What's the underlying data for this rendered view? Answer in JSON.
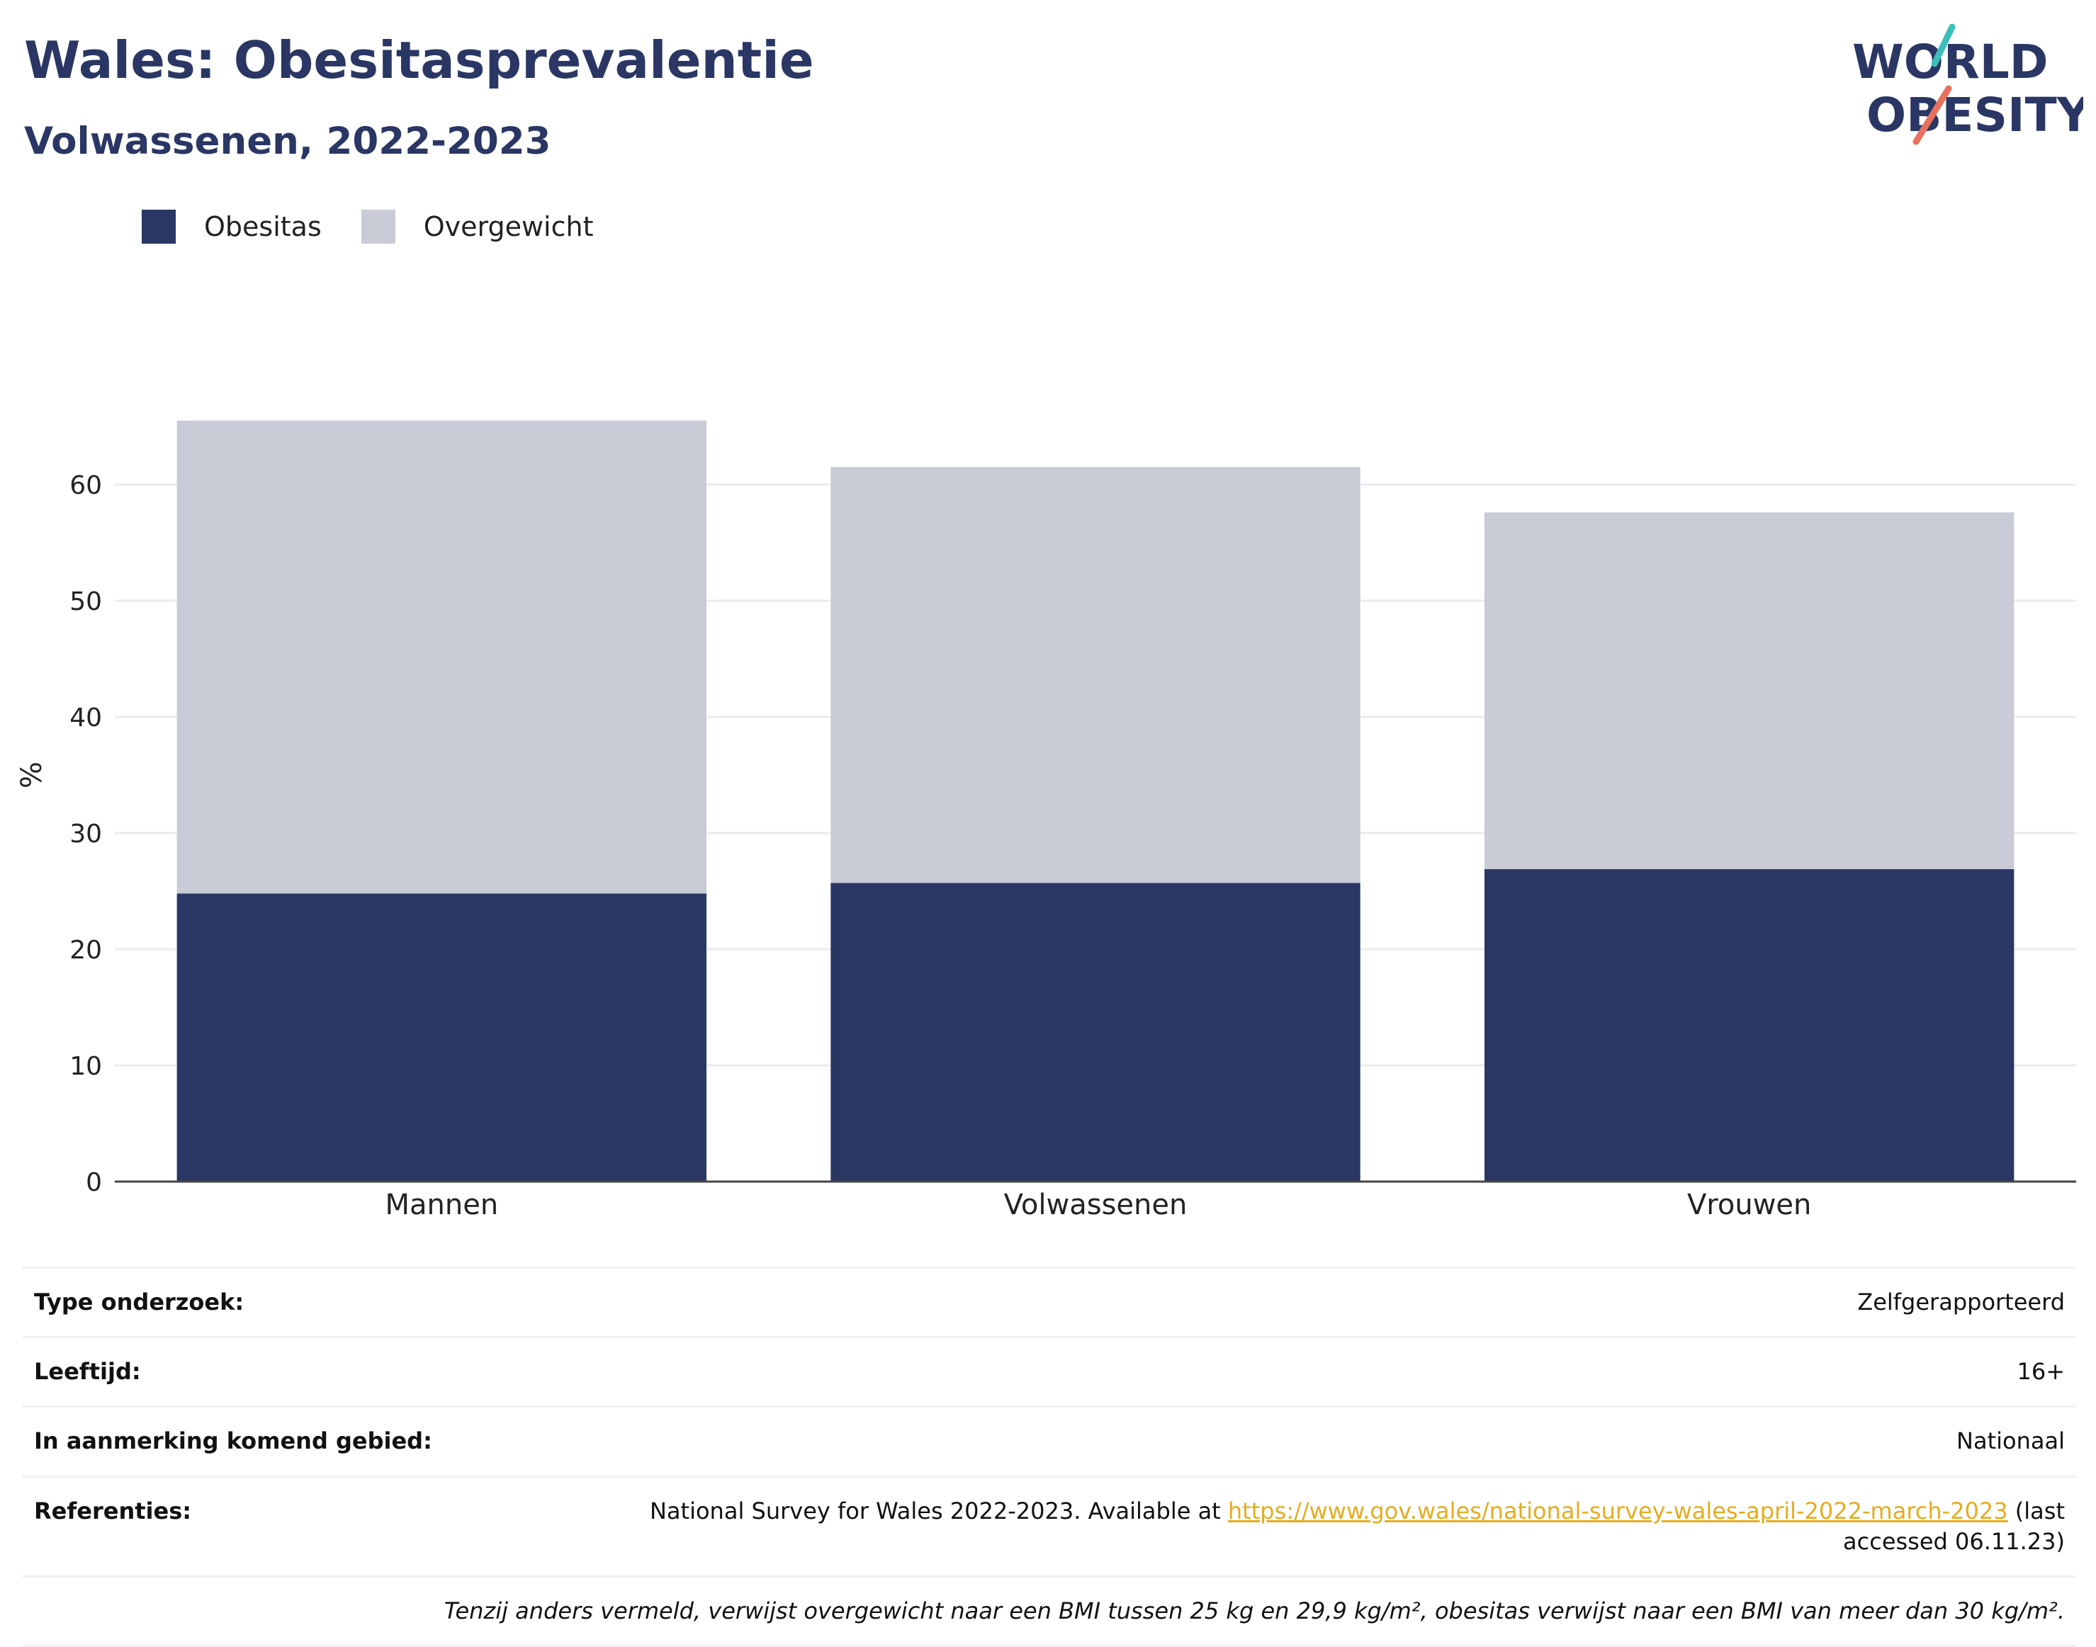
{
  "title": "Wales: Obesitasprevalentie",
  "subtitle": "Volwassenen, 2022-2023",
  "logo": {
    "line1": "WORLD",
    "line2": "OBESITY"
  },
  "colors": {
    "obesity": "#2a3664",
    "overweight": "#c9cbd6",
    "title": "#2a3664",
    "link": "#e6ac1f",
    "logo_teal": "#3bbfb8",
    "logo_coral": "#e8715e"
  },
  "chart_data": {
    "type": "bar",
    "stacked": true,
    "categories": [
      "Mannen",
      "Volwassenen",
      "Vrouwen"
    ],
    "series": [
      {
        "name": "Obesitas",
        "values": [
          24.8,
          25.7,
          26.9
        ]
      },
      {
        "name": "Overgewicht",
        "values": [
          40.7,
          35.8,
          30.7
        ]
      }
    ],
    "ylabel": "%",
    "ylim": [
      0,
      70
    ],
    "yticks": [
      "0",
      "10",
      "20",
      "30",
      "40",
      "50",
      "60"
    ],
    "grid": true,
    "legend_position": "top-left"
  },
  "info": {
    "rows": [
      {
        "label": "Type onderzoek:",
        "value": "Zelfgerapporteerd"
      },
      {
        "label": "Leeftijd:",
        "value": "16+"
      },
      {
        "label": "In aanmerking komend gebied:",
        "value": "Nationaal"
      }
    ],
    "references": {
      "label": "Referenties:",
      "text_before": "National Survey for Wales 2022-2023. Available at ",
      "link": "https://www.gov.wales/national-survey-wales-april-2022-march-2023",
      "text_after": " (last accessed 06.11.23)"
    },
    "note": "Tenzij anders vermeld, verwijst overgewicht naar een BMI tussen 25 kg en 29,9 kg/m², obesitas verwijst naar een BMI van meer dan 30 kg/m²."
  }
}
